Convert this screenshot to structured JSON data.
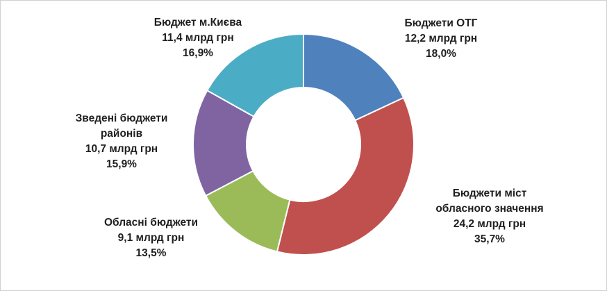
{
  "chart_data": {
    "type": "pie",
    "style": "donut",
    "title": "",
    "start_angle_deg": 0,
    "direction": "clockwise",
    "colors": {
      "otg": "#4f81bd",
      "cities": "#c0504d",
      "oblast": "#9bbb59",
      "raions": "#8064a2",
      "kyiv": "#4bacc6",
      "separator": "#ffffff",
      "label_text": "#1f1f1f"
    },
    "slices": [
      {
        "key": "otg",
        "name_lines": [
          "Бюджети ОТГ"
        ],
        "amount": "12,2 млрд грн",
        "percent_label": "18,0%",
        "value": 12.2,
        "percent": 18.0
      },
      {
        "key": "cities",
        "name_lines": [
          "Бюджети міст",
          "обласного значення"
        ],
        "amount": "24,2 млрд грн",
        "percent_label": "35,7%",
        "value": 24.2,
        "percent": 35.7
      },
      {
        "key": "oblast",
        "name_lines": [
          "Обласні бюджети"
        ],
        "amount": "9,1 млрд грн",
        "percent_label": "13,5%",
        "value": 9.1,
        "percent": 13.5
      },
      {
        "key": "raions",
        "name_lines": [
          "Зведені бюджети",
          "районів"
        ],
        "amount": "10,7 млрд грн",
        "percent_label": "15,9%",
        "value": 10.7,
        "percent": 15.9
      },
      {
        "key": "kyiv",
        "name_lines": [
          "Бюджет м.Києва"
        ],
        "amount": "11,4 млрд грн",
        "percent_label": "16,9%",
        "value": 11.4,
        "percent": 16.9
      }
    ]
  }
}
